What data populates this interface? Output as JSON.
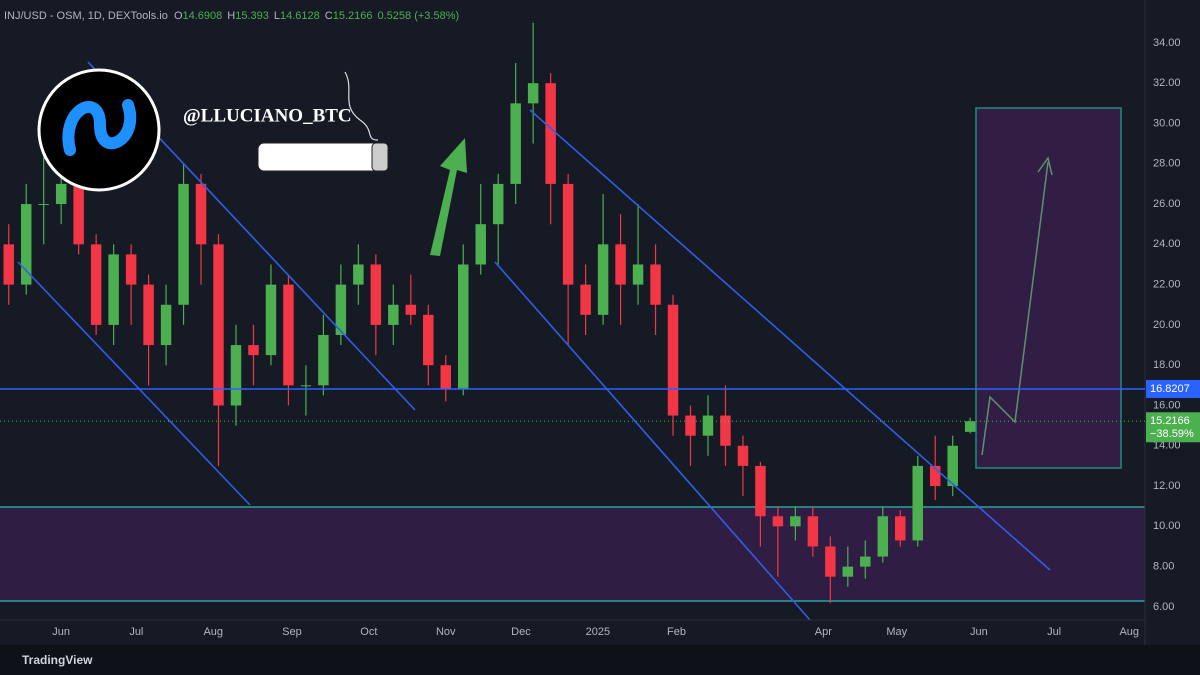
{
  "header": {
    "symbol": "INJ/USD - OSM, 1D, DEXTools.io",
    "ohlc": [
      {
        "label": "O",
        "value": "14.6908"
      },
      {
        "label": "H",
        "value": "15.393"
      },
      {
        "label": "L",
        "value": "14.6128"
      },
      {
        "label": "C",
        "value": "15.2166"
      }
    ],
    "change": "0.5258 (+3.58%)"
  },
  "watermark": "@LLUCIANO_BTC",
  "footer": "TradingView",
  "chart_data": {
    "type": "candlestick",
    "categories": [
      null,
      null,
      null,
      null,
      null,
      null,
      null,
      null,
      null,
      null,
      null,
      null,
      null,
      null,
      null,
      null,
      null,
      null,
      null,
      null,
      null,
      null,
      null,
      null,
      null,
      null,
      null,
      null,
      null,
      null,
      null,
      null,
      null,
      null,
      null,
      null,
      null,
      null,
      null,
      null,
      null,
      null,
      null,
      null,
      null,
      null,
      null,
      null,
      null,
      null,
      null,
      null,
      null,
      null,
      null,
      null
    ],
    "open": [
      24,
      22,
      26,
      26,
      27,
      24,
      20,
      23.5,
      22,
      19,
      21,
      27,
      24,
      16,
      19,
      18.5,
      22,
      17,
      17,
      19.5,
      22,
      23,
      20,
      21,
      20.5,
      18,
      16.8,
      23,
      25,
      27,
      31,
      32,
      27,
      22,
      20.5,
      24,
      22,
      23,
      21,
      15.5,
      14.5,
      15.5,
      14,
      13,
      10.5,
      10,
      10.5,
      9,
      7.5,
      8,
      8.5,
      10.5,
      9.3,
      13,
      12,
      14.6908
    ],
    "high": [
      25,
      27,
      28.5,
      29,
      28.3,
      24.5,
      24,
      24,
      22.5,
      22,
      28,
      27.5,
      24.5,
      20,
      20,
      23,
      22.5,
      18,
      20.5,
      23,
      24,
      23.5,
      22,
      22.5,
      21,
      18.5,
      24,
      27,
      27.5,
      33,
      35,
      32.5,
      27.5,
      23,
      26.5,
      25.5,
      26,
      24,
      21.5,
      16,
      16.5,
      17,
      14.5,
      13.2,
      11,
      11,
      11,
      9.5,
      9,
      9.3,
      11,
      10.8,
      13.5,
      14.5,
      14.5,
      15.393
    ],
    "low": [
      21,
      21.5,
      24,
      25,
      23.5,
      19.5,
      19,
      20,
      17,
      18,
      20,
      22,
      13,
      15,
      17,
      18,
      16,
      15.5,
      16.5,
      19,
      21,
      18.5,
      19,
      20,
      17,
      16.2,
      16.5,
      22.5,
      23,
      26,
      29,
      25,
      19,
      19.5,
      20,
      20,
      21,
      19.5,
      14.5,
      13,
      13.5,
      13,
      11.5,
      9,
      7.5,
      9.3,
      8.5,
      6.2,
      7,
      7.4,
      8.2,
      9,
      9,
      11.3,
      11.5,
      14.6128
    ],
    "close": [
      22,
      26,
      26,
      27,
      24,
      20,
      23.5,
      22,
      19,
      21,
      27,
      24,
      16,
      19,
      18.5,
      22,
      17,
      17,
      19.5,
      22,
      23,
      20,
      21,
      20.5,
      18,
      16.8,
      23,
      25,
      27,
      31,
      32,
      27,
      22,
      20.5,
      24,
      22,
      23,
      21,
      15.5,
      14.5,
      15.5,
      14,
      13,
      10.5,
      10,
      10.5,
      9,
      7.5,
      8,
      8.5,
      10.5,
      9.3,
      13,
      12,
      14,
      15.2166
    ],
    "up_color": "#4caf50",
    "down_color": "#f23645",
    "xlim": [
      -0.5,
      65
    ],
    "xticks": [
      {
        "value": 3,
        "label": "Jun"
      },
      {
        "value": 7.3,
        "label": "Jul"
      },
      {
        "value": 11.7,
        "label": "Aug"
      },
      {
        "value": 16.2,
        "label": "Sep"
      },
      {
        "value": 20.6,
        "label": "Oct"
      },
      {
        "value": 25,
        "label": "Nov"
      },
      {
        "value": 29.3,
        "label": "Dec"
      },
      {
        "value": 33.7,
        "label": "2025"
      },
      {
        "value": 38.2,
        "label": "Feb"
      },
      {
        "value": 46.6,
        "label": "Apr"
      },
      {
        "value": 50.8,
        "label": "May"
      },
      {
        "value": 55.5,
        "label": "Jun"
      },
      {
        "value": 59.8,
        "label": "Jul"
      },
      {
        "value": 64.1,
        "label": "Aug"
      }
    ],
    "ylim": [
      5.35,
      36.13
    ],
    "yticks": [
      {
        "value": 6,
        "label": "6.00"
      },
      {
        "value": 8,
        "label": "8.00"
      },
      {
        "value": 10,
        "label": "10.00"
      },
      {
        "value": 12,
        "label": "12.00"
      },
      {
        "value": 14,
        "label": "14.00"
      },
      {
        "value": 16,
        "label": "16.00"
      },
      {
        "value": 18,
        "label": "18.00"
      },
      {
        "value": 20,
        "label": "20.00"
      },
      {
        "value": 22,
        "label": "22.00"
      },
      {
        "value": 24,
        "label": "24.00"
      },
      {
        "value": 26,
        "label": "26.00"
      },
      {
        "value": 28,
        "label": "28.00"
      },
      {
        "value": 30,
        "label": "30.00"
      },
      {
        "value": 32,
        "label": "32.00"
      },
      {
        "value": 34,
        "label": "34.00"
      }
    ],
    "level": 16.8207,
    "level_color": "#2962ff",
    "last_price": 15.2166,
    "last_change": "−38.59%"
  }
}
